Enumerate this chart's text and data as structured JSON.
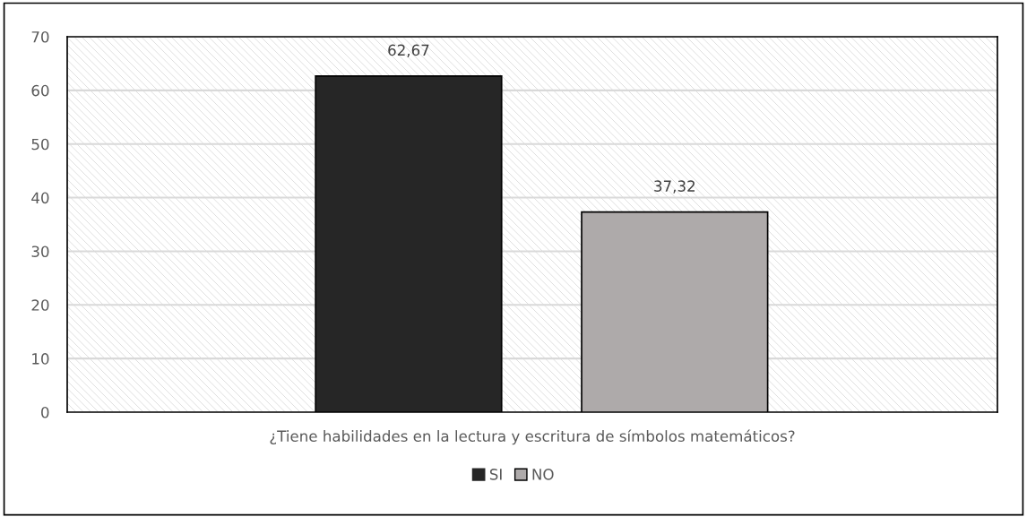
{
  "chart_data": {
    "type": "bar",
    "categories": [
      "¿Tiene habilidades en la lectura y escritura de símbolos matemáticos?"
    ],
    "series": [
      {
        "name": "SI",
        "color": "#262626",
        "values": [
          62.67
        ]
      },
      {
        "name": "NO",
        "color": "#aeaaaa",
        "values": [
          37.32
        ]
      }
    ],
    "value_labels": [
      [
        "62,67"
      ],
      [
        "37,32"
      ]
    ],
    "ylim": [
      0,
      70
    ],
    "yticks": [
      0,
      10,
      20,
      30,
      40,
      50,
      60,
      70
    ],
    "grid": "y",
    "legend": "bottom"
  }
}
